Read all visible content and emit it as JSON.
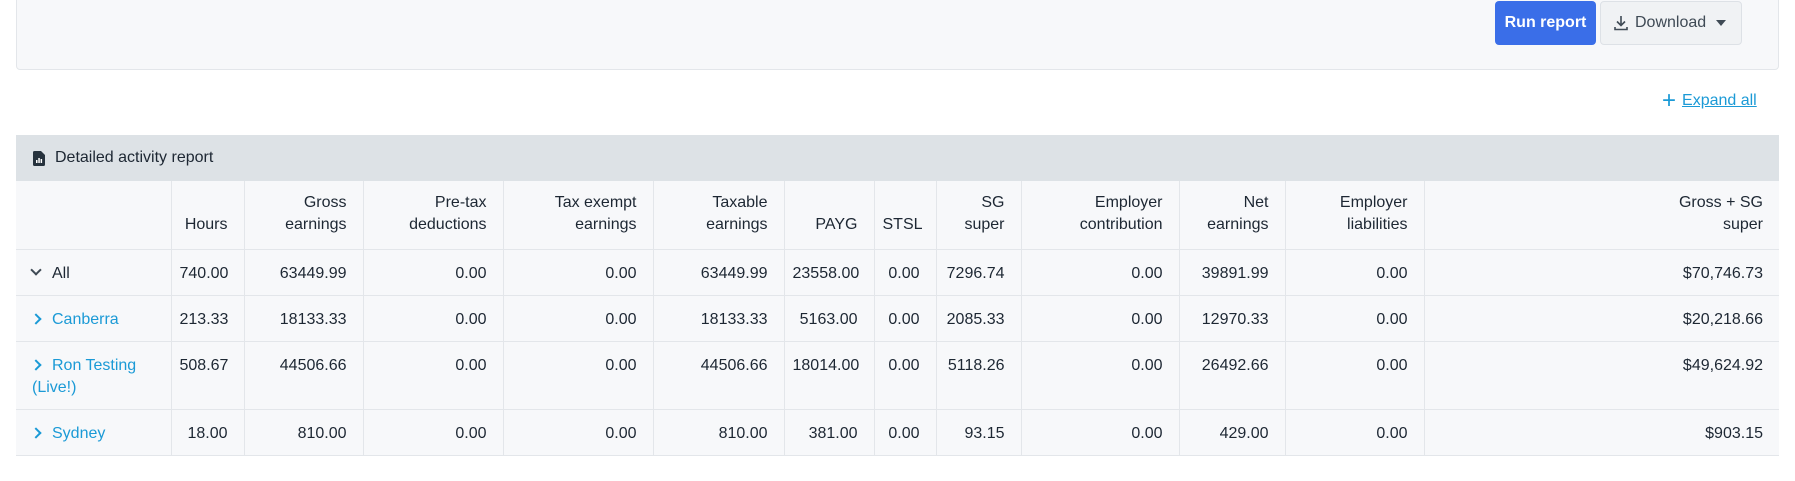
{
  "toolbar": {
    "run_label": "Run report",
    "download_label": "Download"
  },
  "expand_all_label": "Expand all",
  "report": {
    "title": "Detailed activity report",
    "columns": {
      "hours": [
        "",
        "Hours"
      ],
      "gross": [
        "Gross",
        "earnings"
      ],
      "pretax": [
        "Pre-tax",
        "deductions"
      ],
      "taxexempt": [
        "Tax exempt",
        "earnings"
      ],
      "taxable": [
        "Taxable",
        "earnings"
      ],
      "payg": [
        "",
        "PAYG"
      ],
      "stsl": [
        "",
        "STSL"
      ],
      "sg": [
        "SG",
        "super"
      ],
      "empcontrib": [
        "Employer",
        "contribution"
      ],
      "net": [
        "Net",
        "earnings"
      ],
      "empliab": [
        "Employer",
        "liabilities"
      ],
      "grosssg": [
        "Gross + SG",
        "super"
      ]
    },
    "rows": [
      {
        "name": [
          "All",
          ""
        ],
        "hours": "740.00",
        "gross": "63449.99",
        "pretax": "0.00",
        "taxexempt": "0.00",
        "taxable": "63449.99",
        "payg": "23558.00",
        "stsl": "0.00",
        "sg": "7296.74",
        "empcontrib": "0.00",
        "net": "39891.99",
        "empliab": "0.00",
        "grosssg": "$70,746.73"
      },
      {
        "name": [
          "Canberra",
          ""
        ],
        "hours": "213.33",
        "gross": "18133.33",
        "pretax": "0.00",
        "taxexempt": "0.00",
        "taxable": "18133.33",
        "payg": "5163.00",
        "stsl": "0.00",
        "sg": "2085.33",
        "empcontrib": "0.00",
        "net": "12970.33",
        "empliab": "0.00",
        "grosssg": "$20,218.66"
      },
      {
        "name": [
          "Ron Testing",
          "(Live!)"
        ],
        "hours": "508.67",
        "gross": "44506.66",
        "pretax": "0.00",
        "taxexempt": "0.00",
        "taxable": "44506.66",
        "payg": "18014.00",
        "stsl": "0.00",
        "sg": "5118.26",
        "empcontrib": "0.00",
        "net": "26492.66",
        "empliab": "0.00",
        "grosssg": "$49,624.92"
      },
      {
        "name": [
          "Sydney",
          ""
        ],
        "hours": "18.00",
        "gross": "810.00",
        "pretax": "0.00",
        "taxexempt": "0.00",
        "taxable": "810.00",
        "payg": "381.00",
        "stsl": "0.00",
        "sg": "93.15",
        "empcontrib": "0.00",
        "net": "429.00",
        "empliab": "0.00",
        "grosssg": "$903.15"
      }
    ]
  },
  "icons": {
    "download": "download-icon",
    "expand": "plus-icon",
    "report": "report-document-icon",
    "row_collapse": "chevron-down-icon",
    "row_expand": "chevron-right-icon"
  },
  "colors": {
    "primary": "#3a6ee8",
    "link": "#1b9ad6",
    "header_bg": "#dde2e6"
  }
}
